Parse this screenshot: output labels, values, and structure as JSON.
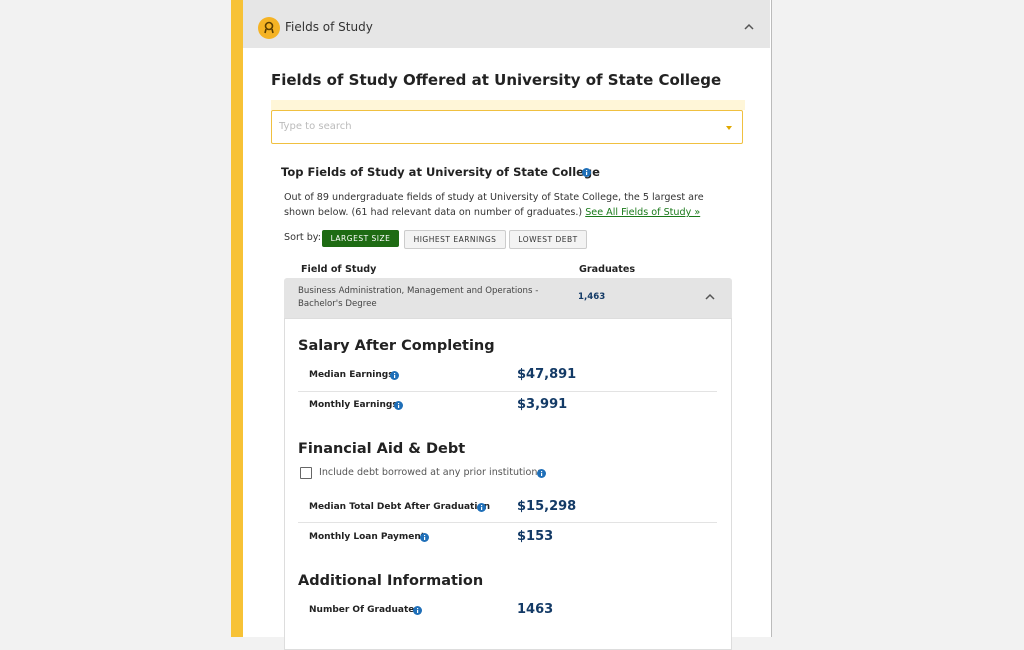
{
  "header": {
    "title": "Fields of Study"
  },
  "page_title": "Fields of Study Offered at University of State College",
  "search": {
    "placeholder": "Type to search"
  },
  "top_fields": {
    "title": "Top Fields of Study at University of State College",
    "description": "Out of 89 undergraduate fields of study at University of State College, the 5 largest are shown below. (61 had relevant data on number of graduates.)",
    "link": "See All Fields of Study »",
    "sort_label": "Sort by:",
    "sort_options": [
      "LARGEST SIZE",
      "HIGHEST EARNINGS",
      "LOWEST DEBT"
    ],
    "columns": [
      "Field of Study",
      "Graduates"
    ],
    "rows": [
      {
        "field": "Business Administration, Management and Operations - Bachelor's Degree",
        "graduates": "1,463"
      }
    ]
  },
  "details": {
    "sections": [
      {
        "title": "Salary After Completing",
        "items": [
          {
            "label": "Median Earnings",
            "value": "$47,891"
          },
          {
            "label": "Monthly Earnings",
            "value": "$3,991"
          }
        ]
      },
      {
        "title": "Financial Aid & Debt",
        "checkbox": "Include debt borrowed at any prior institutions",
        "items": [
          {
            "label": "Median Total Debt After Graduation",
            "value": "$15,298"
          },
          {
            "label": "Monthly Loan Payment",
            "value": "$153"
          }
        ]
      },
      {
        "title": "Additional Information",
        "items": [
          {
            "label": "Number Of Graduates",
            "value": "1463"
          }
        ]
      }
    ]
  }
}
